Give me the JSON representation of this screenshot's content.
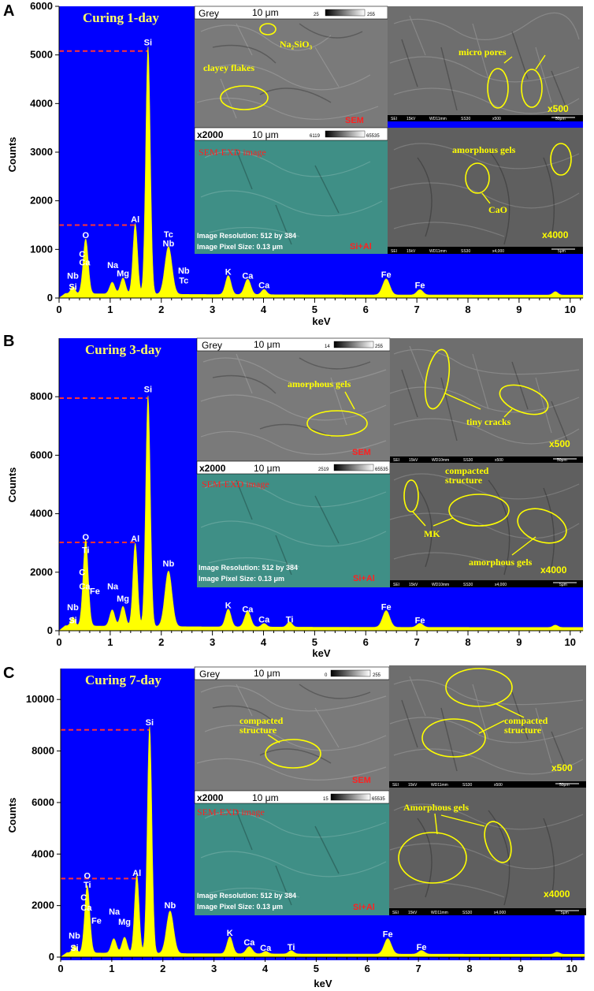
{
  "chart_data": [
    {
      "type": "line",
      "panel_label": "A",
      "title": "Curing 1-day",
      "xlabel": "keV",
      "ylabel": "Counts",
      "xlim": [
        0,
        10.25
      ],
      "ylim": [
        0,
        6000
      ],
      "x_ticks": [
        0,
        1,
        2,
        3,
        4,
        5,
        6,
        7,
        8,
        9,
        10
      ],
      "y_ticks": [
        0,
        1000,
        2000,
        3000,
        4000,
        5000,
        6000
      ],
      "reference_lines": [
        5080,
        1500
      ],
      "baseline": 60,
      "peaks": [
        {
          "x": 0.27,
          "y": 150,
          "w": 0.04
        },
        {
          "x": 0.52,
          "y": 1130,
          "w": 0.05
        },
        {
          "x": 1.04,
          "y": 240,
          "w": 0.05
        },
        {
          "x": 1.25,
          "y": 330,
          "w": 0.05
        },
        {
          "x": 1.49,
          "y": 1450,
          "w": 0.045
        },
        {
          "x": 1.74,
          "y": 5100,
          "w": 0.045
        },
        {
          "x": 2.14,
          "y": 980,
          "w": 0.07
        },
        {
          "x": 3.31,
          "y": 390,
          "w": 0.055
        },
        {
          "x": 3.69,
          "y": 320,
          "w": 0.06
        },
        {
          "x": 4.01,
          "y": 110,
          "w": 0.05
        },
        {
          "x": 6.4,
          "y": 330,
          "w": 0.07
        },
        {
          "x": 7.06,
          "y": 110,
          "w": 0.06
        },
        {
          "x": 9.71,
          "y": 70,
          "w": 0.05
        }
      ],
      "element_labels": [
        {
          "text": "Si",
          "x": 1.74,
          "y": 5200
        },
        {
          "text": "Al",
          "x": 1.49,
          "y": 1560
        },
        {
          "text": "O",
          "x": 0.52,
          "y": 1230
        },
        {
          "text": "C",
          "x": 0.45,
          "y": 840
        },
        {
          "text": "Ca",
          "x": 0.5,
          "y": 670
        },
        {
          "text": "Na",
          "x": 1.05,
          "y": 620
        },
        {
          "text": "Mg",
          "x": 1.25,
          "y": 450
        },
        {
          "text": "Tc",
          "x": 2.14,
          "y": 1250
        },
        {
          "text": "Nb",
          "x": 2.14,
          "y": 1060
        },
        {
          "text": "Nb",
          "x": 2.44,
          "y": 500
        },
        {
          "text": "Tc",
          "x": 2.44,
          "y": 300
        },
        {
          "text": "Nb",
          "x": 0.27,
          "y": 400
        },
        {
          "text": "Si",
          "x": 0.27,
          "y": 170
        },
        {
          "text": "K",
          "x": 3.31,
          "y": 480
        },
        {
          "text": "Ca",
          "x": 3.69,
          "y": 400
        },
        {
          "text": "Ca",
          "x": 4.01,
          "y": 200
        },
        {
          "text": "Fe",
          "x": 6.4,
          "y": 420
        },
        {
          "text": "Fe",
          "x": 7.06,
          "y": 200
        }
      ]
    },
    {
      "type": "line",
      "panel_label": "B",
      "title": "Curing 3-day",
      "xlabel": "keV",
      "ylabel": "Counts",
      "xlim": [
        0,
        10.25
      ],
      "ylim": [
        0,
        10000
      ],
      "x_ticks": [
        0,
        1,
        2,
        3,
        4,
        5,
        6,
        7,
        8,
        9,
        10
      ],
      "y_ticks": [
        0,
        2000,
        4000,
        6000,
        8000
      ],
      "reference_lines": [
        7950,
        3020
      ],
      "baseline": 110,
      "peaks": [
        {
          "x": 0.27,
          "y": 300,
          "w": 0.04
        },
        {
          "x": 0.52,
          "y": 2950,
          "w": 0.05
        },
        {
          "x": 1.04,
          "y": 560,
          "w": 0.05
        },
        {
          "x": 1.25,
          "y": 680,
          "w": 0.05
        },
        {
          "x": 1.49,
          "y": 2850,
          "w": 0.045
        },
        {
          "x": 1.74,
          "y": 7900,
          "w": 0.045
        },
        {
          "x": 2.14,
          "y": 1900,
          "w": 0.07
        },
        {
          "x": 3.31,
          "y": 610,
          "w": 0.055
        },
        {
          "x": 3.69,
          "y": 540,
          "w": 0.06
        },
        {
          "x": 4.01,
          "y": 120,
          "w": 0.05
        },
        {
          "x": 4.51,
          "y": 180,
          "w": 0.05
        },
        {
          "x": 6.4,
          "y": 570,
          "w": 0.07
        },
        {
          "x": 7.06,
          "y": 140,
          "w": 0.06
        },
        {
          "x": 9.71,
          "y": 80,
          "w": 0.05
        }
      ],
      "element_labels": [
        {
          "text": "Si",
          "x": 1.74,
          "y": 8150
        },
        {
          "text": "Al",
          "x": 1.49,
          "y": 3050
        },
        {
          "text": "O",
          "x": 0.52,
          "y": 3100
        },
        {
          "text": "Ti",
          "x": 0.52,
          "y": 2650
        },
        {
          "text": "C",
          "x": 0.45,
          "y": 1900
        },
        {
          "text": "Ca",
          "x": 0.5,
          "y": 1420
        },
        {
          "text": "Fe",
          "x": 0.7,
          "y": 1250
        },
        {
          "text": "Na",
          "x": 1.05,
          "y": 1420
        },
        {
          "text": "Mg",
          "x": 1.25,
          "y": 1000
        },
        {
          "text": "Nb",
          "x": 2.14,
          "y": 2200
        },
        {
          "text": "Nb",
          "x": 0.27,
          "y": 700
        },
        {
          "text": "Si",
          "x": 0.27,
          "y": 260
        },
        {
          "text": "K",
          "x": 3.31,
          "y": 770
        },
        {
          "text": "Ca",
          "x": 3.69,
          "y": 630
        },
        {
          "text": "Ca",
          "x": 4.01,
          "y": 280
        },
        {
          "text": "Ti",
          "x": 4.51,
          "y": 280
        },
        {
          "text": "Fe",
          "x": 6.4,
          "y": 720
        },
        {
          "text": "Fe",
          "x": 7.06,
          "y": 260
        }
      ]
    },
    {
      "type": "line",
      "panel_label": "C",
      "title": "Curing 7-day",
      "xlabel": "keV",
      "ylabel": "Counts",
      "xlim": [
        0,
        10.25
      ],
      "ylim": [
        0,
        11200
      ],
      "x_ticks": [
        0,
        1,
        2,
        3,
        4,
        5,
        6,
        7,
        8,
        9,
        10
      ],
      "y_ticks": [
        0,
        2000,
        4000,
        6000,
        8000,
        10000
      ],
      "reference_lines": [
        8820,
        3050
      ],
      "baseline": 110,
      "peaks": [
        {
          "x": 0.27,
          "y": 300,
          "w": 0.04
        },
        {
          "x": 0.52,
          "y": 2620,
          "w": 0.05
        },
        {
          "x": 1.04,
          "y": 560,
          "w": 0.05
        },
        {
          "x": 1.25,
          "y": 620,
          "w": 0.05
        },
        {
          "x": 1.49,
          "y": 3050,
          "w": 0.045
        },
        {
          "x": 1.74,
          "y": 8820,
          "w": 0.045
        },
        {
          "x": 2.14,
          "y": 1650,
          "w": 0.07
        },
        {
          "x": 3.31,
          "y": 660,
          "w": 0.055
        },
        {
          "x": 3.69,
          "y": 280,
          "w": 0.06
        },
        {
          "x": 4.01,
          "y": 100,
          "w": 0.05
        },
        {
          "x": 4.51,
          "y": 130,
          "w": 0.05
        },
        {
          "x": 6.4,
          "y": 600,
          "w": 0.07
        },
        {
          "x": 7.06,
          "y": 140,
          "w": 0.06
        },
        {
          "x": 9.71,
          "y": 80,
          "w": 0.05
        }
      ],
      "element_labels": [
        {
          "text": "Si",
          "x": 1.74,
          "y": 9000
        },
        {
          "text": "Al",
          "x": 1.49,
          "y": 3150
        },
        {
          "text": "O",
          "x": 0.52,
          "y": 3050
        },
        {
          "text": "Ti",
          "x": 0.52,
          "y": 2700
        },
        {
          "text": "C",
          "x": 0.45,
          "y": 2200
        },
        {
          "text": "Ca",
          "x": 0.5,
          "y": 1800
        },
        {
          "text": "Fe",
          "x": 0.7,
          "y": 1300
        },
        {
          "text": "Na",
          "x": 1.05,
          "y": 1650
        },
        {
          "text": "Mg",
          "x": 1.25,
          "y": 1250
        },
        {
          "text": "Nb",
          "x": 2.14,
          "y": 1900
        },
        {
          "text": "Nb",
          "x": 0.27,
          "y": 720
        },
        {
          "text": "Si",
          "x": 0.27,
          "y": 240
        },
        {
          "text": "K",
          "x": 3.31,
          "y": 830
        },
        {
          "text": "Ca",
          "x": 3.69,
          "y": 460
        },
        {
          "text": "Ca",
          "x": 4.01,
          "y": 240
        },
        {
          "text": "Ti",
          "x": 4.51,
          "y": 280
        },
        {
          "text": "Fe",
          "x": 6.4,
          "y": 780
        },
        {
          "text": "Fe",
          "x": 7.06,
          "y": 280
        }
      ]
    }
  ],
  "insets": [
    {
      "grey_label": "Grey",
      "scale_top": "10 μm",
      "lut_min_top": "25",
      "lut_max_top": "255",
      "mag_label": "x2000",
      "scale_bottom": "10 μm",
      "lut_min_bottom": "6119",
      "lut_max_bottom": "65535",
      "sem_tag": "SEM",
      "sem_exd_title": "SEM-EXD image",
      "resolution_line": "Image Resolution: 512 by 384",
      "pixel_line": "Image Pixel Size: 0.13 μm",
      "element_tag": "Si+Al",
      "top_annotations": [
        "Na₂SiO₃",
        "clayey flakes"
      ],
      "x500_label": "x500",
      "x500_annotations": [
        "micro pores"
      ],
      "x500_scale": "50μm",
      "x4000_label": "x4000",
      "x4000_annotations": [
        "amorphous gels",
        "CaO"
      ],
      "x4000_scale": "5μm",
      "footer_a": "SEI",
      "footer_b": "15kV",
      "footer_c": "WD11mm",
      "footer_d": "SS30",
      "footer_e_500": "x500",
      "footer_e_4000": "x4,000"
    },
    {
      "grey_label": "Grey",
      "scale_top": "10 μm",
      "lut_min_top": "14",
      "lut_max_top": "255",
      "mag_label": "x2000",
      "scale_bottom": "10 μm",
      "lut_min_bottom": "2519",
      "lut_max_bottom": "65535",
      "sem_tag": "SEM",
      "sem_exd_title": "SEM-EXD image",
      "resolution_line": "Image Resolution: 512 by 384",
      "pixel_line": "Image Pixel Size: 0.13 μm",
      "element_tag": "Si+Al",
      "top_annotations": [
        "amorphous gels"
      ],
      "x500_label": "x500",
      "x500_annotations": [
        "tiny cracks"
      ],
      "x500_scale": "50μm",
      "x4000_label": "x4000",
      "x4000_annotations": [
        "compacted",
        "structure",
        "MK",
        "amorphous gels"
      ],
      "x4000_scale": "5μm",
      "footer_a": "SEI",
      "footer_b": "15kV",
      "footer_c": "WD10mm",
      "footer_d": "SS30",
      "footer_e_500": "x500",
      "footer_e_4000": "x4,000"
    },
    {
      "grey_label": "Grey",
      "scale_top": "10 μm",
      "lut_min_top": "0",
      "lut_max_top": "255",
      "mag_label": "x2000",
      "scale_bottom": "10 μm",
      "lut_min_bottom": "15",
      "lut_max_bottom": "65535",
      "sem_tag": "SEM",
      "sem_exd_title": "SEM-EXD image",
      "resolution_line": "Image Resolution: 512 by 384",
      "pixel_line": "Image Pixel Size: 0.13 μm",
      "element_tag": "Si+Al",
      "top_annotations": [
        "compacted",
        "structure"
      ],
      "x500_label": "x500",
      "x500_annotations": [
        "compacted",
        "structure"
      ],
      "x500_scale": "50μm",
      "x4000_label": "x4000",
      "x4000_annotations": [
        "Amorphous gels"
      ],
      "x4000_scale": "5μm",
      "footer_a": "SEI",
      "footer_b": "15kV",
      "footer_c": "WD11mm",
      "footer_d": "SS30",
      "footer_e_500": "x500",
      "footer_e_4000": "x4,000"
    }
  ]
}
